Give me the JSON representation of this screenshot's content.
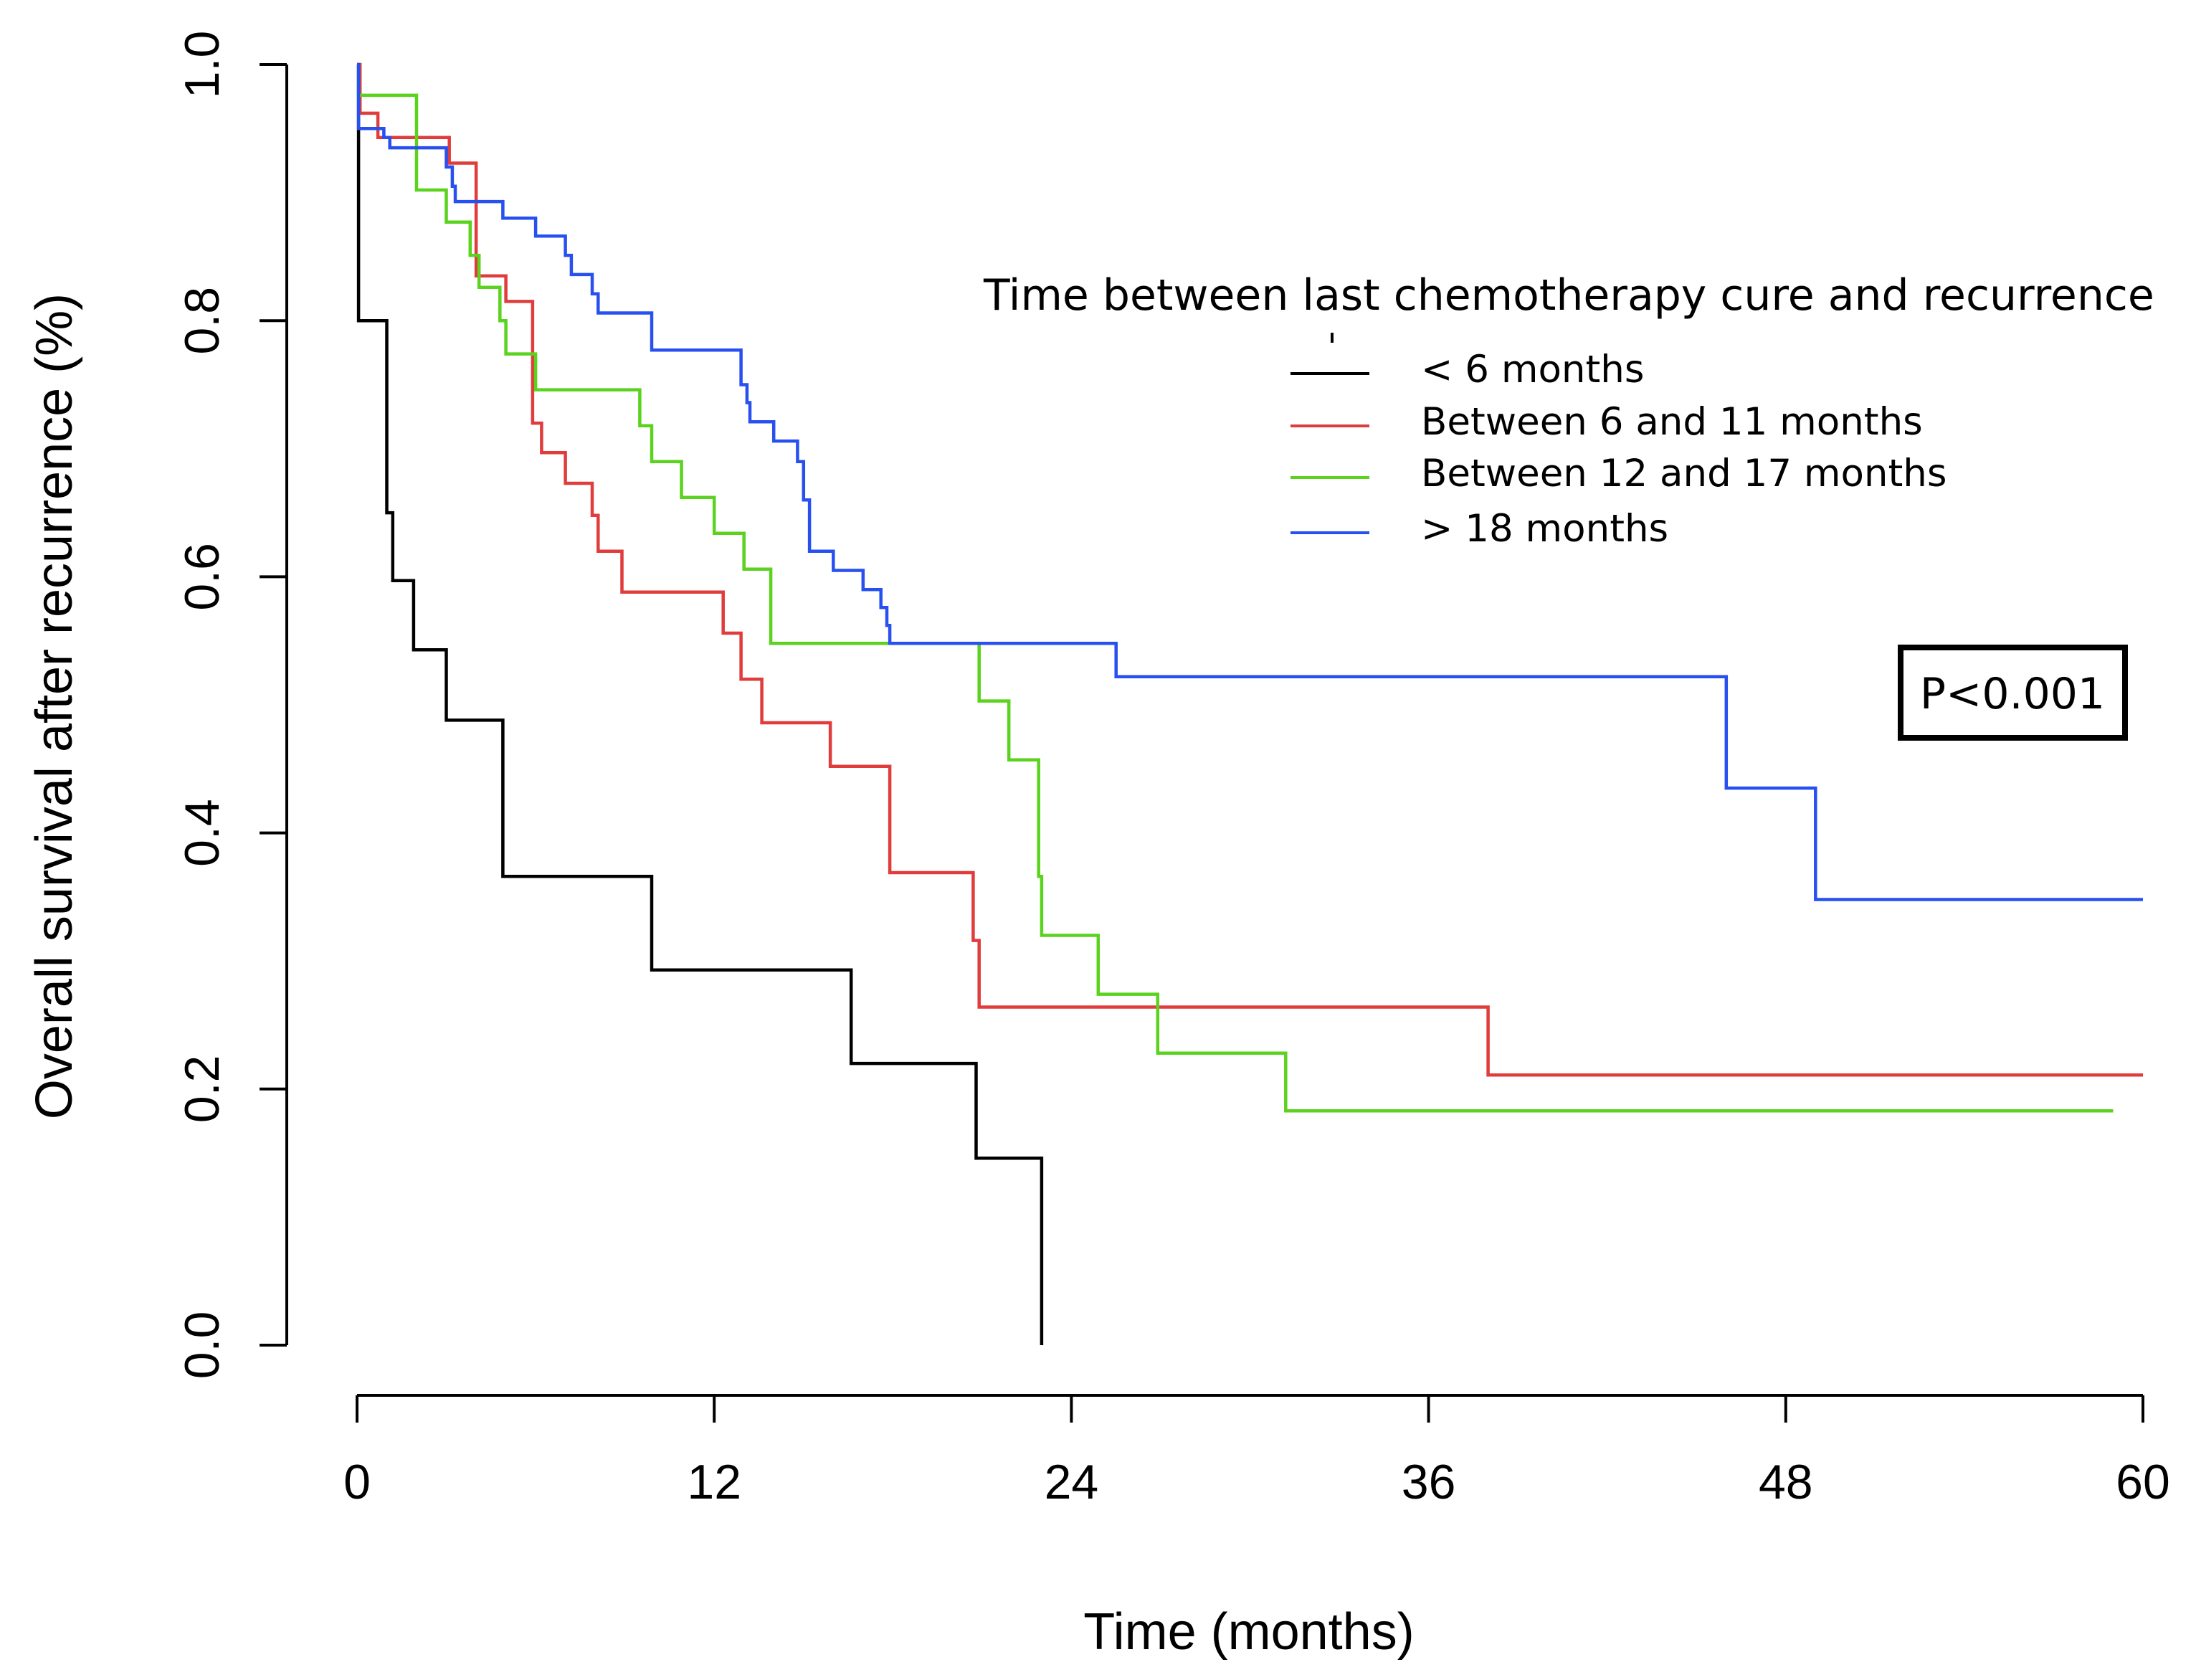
{
  "chart_data": {
    "type": "line",
    "subtype": "kaplan-meier step",
    "xlabel": "Time (months)",
    "ylabel": "Overall survival after recurrence (%)",
    "xlim": [
      0,
      60
    ],
    "ylim": [
      0,
      1
    ],
    "x_ticks": [
      "0",
      "12",
      "24",
      "36",
      "48",
      "60"
    ],
    "x_tick_values": [
      0,
      12,
      24,
      36,
      48,
      60
    ],
    "y_ticks": [
      "0.0",
      "0.2",
      "0.4",
      "0.6",
      "0.8",
      "1.0"
    ],
    "y_tick_values": [
      0,
      0.2,
      0.4,
      0.6,
      0.8,
      1.0
    ],
    "legend_title": "Time between last chemotherapy cure and recurrence",
    "legend_position": "upper-right",
    "annotation": "P<0.001",
    "series": [
      {
        "name": "< 6 months",
        "color": "#000000",
        "steps": [
          [
            0,
            1.0
          ],
          [
            0.05,
            0.8
          ],
          [
            1.0,
            0.65
          ],
          [
            1.2,
            0.597
          ],
          [
            1.9,
            0.543
          ],
          [
            3.0,
            0.488
          ],
          [
            4.9,
            0.366
          ],
          [
            9.9,
            0.293
          ],
          [
            16.6,
            0.22
          ],
          [
            20.8,
            0.146
          ],
          [
            23.0,
            0.0
          ]
        ]
      },
      {
        "name": "Between 6 and 11 months",
        "color": "#e03c3c",
        "steps": [
          [
            0,
            1.0
          ],
          [
            0.1,
            0.962
          ],
          [
            0.7,
            0.943
          ],
          [
            3.0,
            0.943
          ],
          [
            3.1,
            0.923
          ],
          [
            4.0,
            0.835
          ],
          [
            5.0,
            0.815
          ],
          [
            5.9,
            0.72
          ],
          [
            6.2,
            0.697
          ],
          [
            7.0,
            0.673
          ],
          [
            7.9,
            0.648
          ],
          [
            8.1,
            0.62
          ],
          [
            8.9,
            0.588
          ],
          [
            12.3,
            0.556
          ],
          [
            12.9,
            0.52
          ],
          [
            13.6,
            0.486
          ],
          [
            15.9,
            0.452
          ],
          [
            17.9,
            0.369
          ],
          [
            20.7,
            0.316
          ],
          [
            20.9,
            0.264
          ],
          [
            38.0,
            0.211
          ],
          [
            60.0,
            0.211
          ]
        ]
      },
      {
        "name": "Between 12 and 17 months",
        "color": "#5ad21e",
        "steps": [
          [
            0,
            1.0
          ],
          [
            0.05,
            0.976
          ],
          [
            2.0,
            0.902
          ],
          [
            3.0,
            0.877
          ],
          [
            3.8,
            0.851
          ],
          [
            4.1,
            0.826
          ],
          [
            4.8,
            0.8
          ],
          [
            5.0,
            0.774
          ],
          [
            6.0,
            0.746
          ],
          [
            9.5,
            0.718
          ],
          [
            9.9,
            0.69
          ],
          [
            10.9,
            0.662
          ],
          [
            12.0,
            0.634
          ],
          [
            13.0,
            0.606
          ],
          [
            13.9,
            0.548
          ],
          [
            20.9,
            0.503
          ],
          [
            21.9,
            0.457
          ],
          [
            22.9,
            0.366
          ],
          [
            23.0,
            0.32
          ],
          [
            24.9,
            0.274
          ],
          [
            26.9,
            0.228
          ],
          [
            31.2,
            0.183
          ],
          [
            59.0,
            0.183
          ]
        ]
      },
      {
        "name": "> 18 months",
        "color": "#2850f0",
        "steps": [
          [
            0,
            1.0
          ],
          [
            0.05,
            0.95
          ],
          [
            0.9,
            0.943
          ],
          [
            1.1,
            0.935
          ],
          [
            3.0,
            0.92
          ],
          [
            3.2,
            0.905
          ],
          [
            3.3,
            0.893
          ],
          [
            4.9,
            0.88
          ],
          [
            6.0,
            0.866
          ],
          [
            7.0,
            0.851
          ],
          [
            7.2,
            0.836
          ],
          [
            7.9,
            0.821
          ],
          [
            8.1,
            0.806
          ],
          [
            9.9,
            0.777
          ],
          [
            12.9,
            0.75
          ],
          [
            13.1,
            0.736
          ],
          [
            13.2,
            0.721
          ],
          [
            14.0,
            0.706
          ],
          [
            14.8,
            0.69
          ],
          [
            15.0,
            0.66
          ],
          [
            15.2,
            0.62
          ],
          [
            16.0,
            0.605
          ],
          [
            17.0,
            0.59
          ],
          [
            17.6,
            0.576
          ],
          [
            17.8,
            0.562
          ],
          [
            17.9,
            0.548
          ],
          [
            25.5,
            0.522
          ],
          [
            46.0,
            0.435
          ],
          [
            49.0,
            0.348
          ],
          [
            60.0,
            0.348
          ]
        ]
      }
    ]
  }
}
